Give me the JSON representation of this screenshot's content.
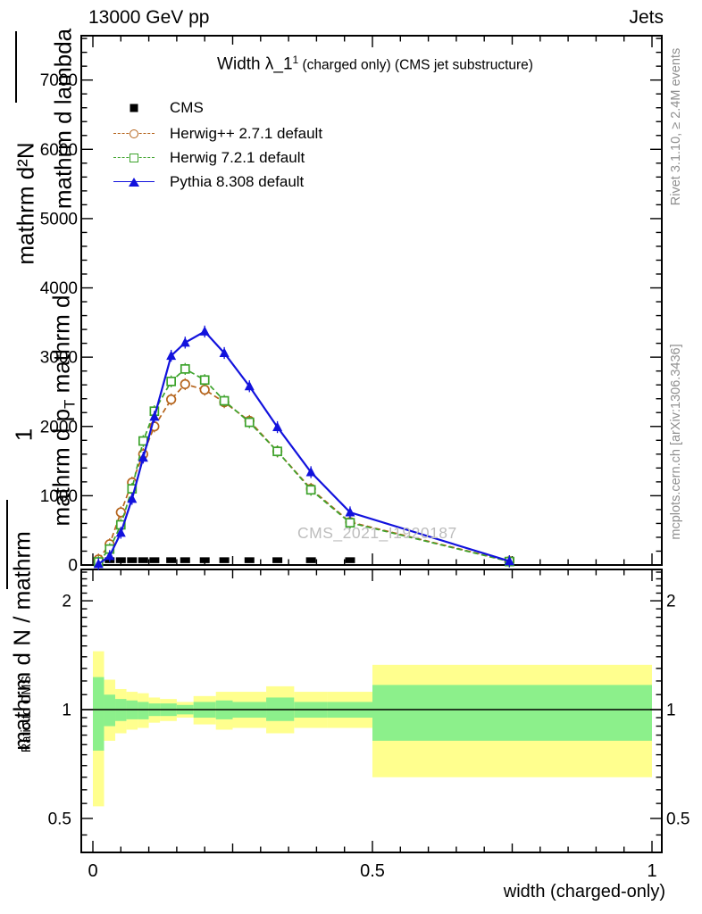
{
  "header": {
    "left_label": "13000 GeV pp",
    "right_label": "Jets"
  },
  "plot_title": {
    "main": "Width λ_1",
    "sup": "1",
    "rest": " (charged only) (CMS jet substructure)"
  },
  "watermark": "CMS_2021_I1920187",
  "side_notes": {
    "top": "Rivet 3.1.10, ≥ 2.4M events",
    "bottom": "mcplots.cern.ch [arXiv:1306.3436]"
  },
  "y_axis_garbled": {
    "frag_d2N": "mathrm d²N",
    "frag_dlambda": "mathrm d lambda",
    "frag_dp1": "mathrm d p",
    "frag_dpT": "T",
    "frag_dp2": " mathrm d",
    "frag_one": "1",
    "frag_dN": "mathrm d N / mathrm"
  },
  "ratio_label": "Ratio to CMS",
  "x_label": "width (charged-only)",
  "colors": {
    "cms": "#000000",
    "herwigpp": "#b5641c",
    "herwig7": "#3da32c",
    "pythia": "#1212dd",
    "band_yellow": "#ffff8e",
    "band_green": "#8cf08b",
    "note_gray": "#8f8f8f",
    "watermark_gray": "#bdbdbd"
  },
  "legend": [
    {
      "label": "CMS",
      "color": "#000000",
      "marker": "square-filled",
      "line": "none"
    },
    {
      "label": "Herwig++ 2.7.1 default",
      "color": "#b5641c",
      "marker": "circle-open",
      "line": "dashed"
    },
    {
      "label": "Herwig 7.2.1 default",
      "color": "#3da32c",
      "marker": "square-open",
      "line": "dashed"
    },
    {
      "label": "Pythia 8.308 default",
      "color": "#1212dd",
      "marker": "triangle-filled",
      "line": "solid"
    }
  ],
  "chart_data": {
    "type": "line",
    "title": "Width λ_1^1 (charged only) (CMS jet substructure)",
    "xlabel": "width (charged-only)",
    "ylabel": "mathrm d²N / mathrm d N mathrm d p_T mathrm d lambda (garbled axis label as rendered)",
    "xlim": [
      0,
      1
    ],
    "ylim": [
      0,
      7640
    ],
    "x_tick_values": [
      0,
      0.5,
      1
    ],
    "x_tick_labels": [
      "0",
      "0.5",
      "1"
    ],
    "x_minor_step": 0.05,
    "x_medium_ticks": [
      0.25,
      0.75
    ],
    "y_tick_values": [
      0,
      1000,
      2000,
      3000,
      4000,
      5000,
      6000,
      7000
    ],
    "y_tick_labels": [
      "0",
      "1000",
      "2000",
      "3000",
      "4000",
      "5000",
      "6000",
      "7000"
    ],
    "y_minor_step": 200,
    "x": [
      0.01,
      0.03,
      0.05,
      0.07,
      0.09,
      0.11,
      0.14,
      0.165,
      0.2,
      0.235,
      0.28,
      0.33,
      0.39,
      0.46,
      0.745
    ],
    "series": [
      {
        "name": "CMS",
        "color": "#000000",
        "marker": "square-filled",
        "line": "none",
        "values": [
          70,
          70,
          70,
          70,
          70,
          70,
          70,
          70,
          70,
          70,
          70,
          70,
          70,
          70,
          70
        ]
      },
      {
        "name": "Herwig++ 2.7.1 default",
        "color": "#b5641c",
        "marker": "circle-open",
        "line": "dashed",
        "values": [
          80,
          300,
          760,
          1190,
          1600,
          2000,
          2390,
          2610,
          2530,
          2350,
          2080,
          1640,
          1100,
          620,
          55
        ]
      },
      {
        "name": "Herwig 7.2.1 default",
        "color": "#3da32c",
        "marker": "square-open",
        "line": "dashed",
        "values": [
          45,
          230,
          580,
          1100,
          1790,
          2220,
          2650,
          2830,
          2670,
          2370,
          2060,
          1640,
          1085,
          610,
          50
        ]
      },
      {
        "name": "Pythia 8.308 default",
        "color": "#1212dd",
        "marker": "triangle-filled",
        "line": "solid",
        "values": [
          15,
          130,
          465,
          955,
          1550,
          2140,
          3020,
          3210,
          3370,
          3060,
          2580,
          1990,
          1340,
          760,
          55
        ]
      }
    ],
    "error_bar_half": 60,
    "ratio": {
      "scale": "log",
      "ylim": [
        0.4,
        2.45
      ],
      "tick_values": [
        0.5,
        1,
        2
      ],
      "tick_labels": [
        "0.5",
        "1",
        "2"
      ],
      "minor_ticks": [
        0.45,
        0.55,
        0.6,
        0.65,
        0.7,
        0.75,
        0.8,
        0.85,
        0.9,
        0.95,
        1.1,
        1.2,
        1.3,
        1.4,
        1.5,
        1.6,
        1.7,
        1.8,
        1.9,
        2.1,
        2.2,
        2.3,
        2.4
      ],
      "reference_line": 1,
      "bin_edges": [
        0,
        0.02,
        0.04,
        0.06,
        0.08,
        0.1,
        0.12,
        0.15,
        0.18,
        0.22,
        0.25,
        0.31,
        0.36,
        0.42,
        0.5,
        1.0
      ],
      "yellow_hi": [
        1.45,
        1.21,
        1.14,
        1.12,
        1.11,
        1.08,
        1.07,
        1.05,
        1.09,
        1.12,
        1.12,
        1.16,
        1.12,
        1.12,
        1.33
      ],
      "yellow_lo": [
        0.54,
        0.82,
        0.86,
        0.88,
        0.89,
        0.92,
        0.93,
        0.95,
        0.91,
        0.88,
        0.89,
        0.86,
        0.89,
        0.89,
        0.65
      ],
      "green_hi": [
        1.23,
        1.1,
        1.07,
        1.06,
        1.05,
        1.04,
        1.04,
        1.03,
        1.05,
        1.06,
        1.05,
        1.08,
        1.05,
        1.05,
        1.17
      ],
      "green_lo": [
        0.77,
        0.9,
        0.93,
        0.94,
        0.94,
        0.96,
        0.96,
        0.97,
        0.95,
        0.94,
        0.95,
        0.93,
        0.95,
        0.95,
        0.82
      ]
    }
  }
}
